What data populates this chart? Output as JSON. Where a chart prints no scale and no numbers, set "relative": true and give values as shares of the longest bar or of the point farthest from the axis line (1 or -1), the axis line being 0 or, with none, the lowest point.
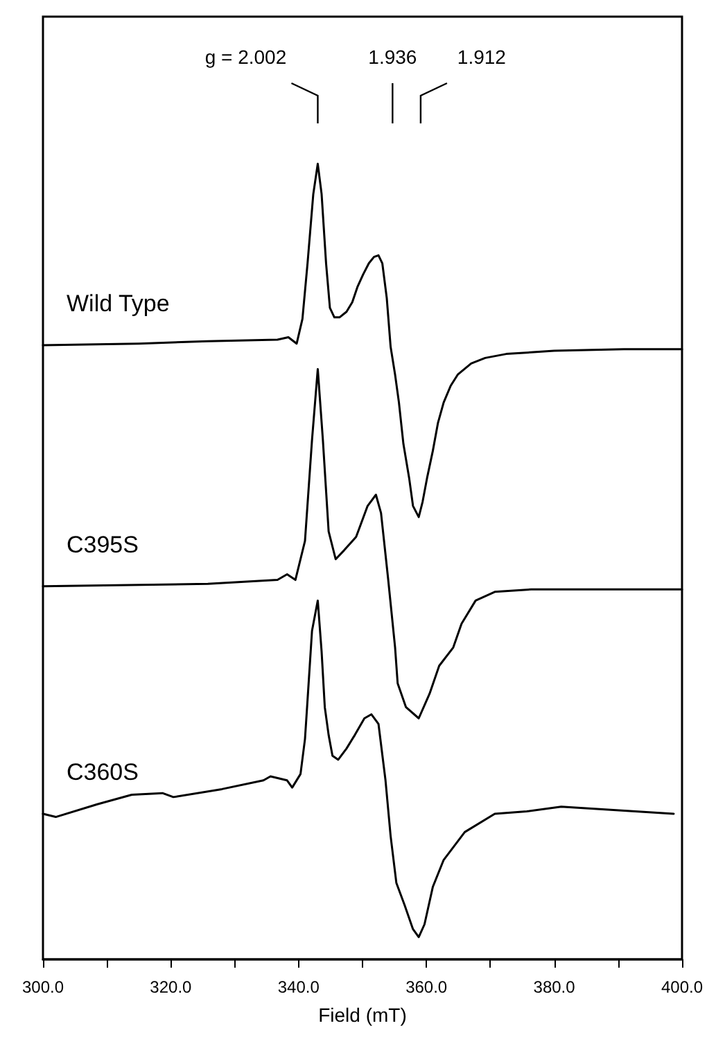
{
  "chart_data": {
    "type": "line",
    "relative": true,
    "xlabel": "Field (mT)",
    "xlim": [
      300,
      400
    ],
    "xticks": [
      {
        "value": 300,
        "label": "300.0"
      },
      {
        "value": 310,
        "label": null
      },
      {
        "value": 320,
        "label": "320.0"
      },
      {
        "value": 330,
        "label": null
      },
      {
        "value": 340,
        "label": "340.0"
      },
      {
        "value": 350,
        "label": null
      },
      {
        "value": 360,
        "label": "360.0"
      },
      {
        "value": 370,
        "label": null
      },
      {
        "value": 380,
        "label": "380.0"
      },
      {
        "value": 390,
        "label": null
      },
      {
        "value": 400,
        "label": "400.0"
      }
    ],
    "grid": false,
    "legend": false,
    "marker": "none",
    "line_style": "solid",
    "tick_labels": "x",
    "annotations": [
      "g = 2.002",
      "1.936",
      "1.912"
    ],
    "series": [
      {
        "name": "Wild Type",
        "color": "#000000",
        "x": [
          300.0,
          315.0,
          325.8,
          336.7,
          338.4,
          339.7,
          340.6,
          341.4,
          342.3,
          343.0,
          343.6,
          344.3,
          344.9,
          345.6,
          346.4,
          347.5,
          348.4,
          349.2,
          350.1,
          351.0,
          351.8,
          352.5,
          353.1,
          353.8,
          354.4,
          355.1,
          355.7,
          356.4,
          357.3,
          357.9,
          358.8,
          359.4,
          360.1,
          361.0,
          361.8,
          362.7,
          363.8,
          364.9,
          367.0,
          369.2,
          372.5,
          380.0,
          390.9,
          400.0
        ],
        "values": [
          0.772,
          0.774,
          0.777,
          0.779,
          0.782,
          0.774,
          0.805,
          0.875,
          0.962,
          1.0,
          0.962,
          0.875,
          0.819,
          0.807,
          0.807,
          0.814,
          0.826,
          0.845,
          0.861,
          0.875,
          0.883,
          0.885,
          0.875,
          0.831,
          0.77,
          0.735,
          0.7,
          0.648,
          0.605,
          0.57,
          0.556,
          0.575,
          0.605,
          0.639,
          0.674,
          0.7,
          0.721,
          0.735,
          0.749,
          0.756,
          0.761,
          0.765,
          0.767,
          0.767
        ]
      },
      {
        "name": "C395S",
        "color": "#000000",
        "x": [
          300.0,
          325.8,
          336.7,
          338.2,
          339.5,
          341.0,
          342.1,
          343.0,
          343.8,
          344.7,
          345.8,
          347.1,
          349.0,
          350.8,
          352.1,
          352.9,
          354.0,
          355.1,
          355.5,
          356.8,
          358.8,
          360.5,
          362.0,
          364.2,
          365.5,
          367.7,
          370.7,
          376.4,
          400.0
        ],
        "values": [
          0.469,
          0.472,
          0.477,
          0.484,
          0.477,
          0.526,
          0.653,
          0.742,
          0.653,
          0.538,
          0.503,
          0.514,
          0.531,
          0.57,
          0.584,
          0.561,
          0.479,
          0.392,
          0.347,
          0.317,
          0.303,
          0.334,
          0.369,
          0.392,
          0.422,
          0.451,
          0.462,
          0.465,
          0.465
        ]
      },
      {
        "name": "C360S",
        "color": "#000000",
        "x": [
          300.0,
          302.0,
          308.5,
          313.9,
          318.7,
          320.4,
          328.0,
          334.5,
          335.6,
          338.2,
          339.0,
          340.3,
          341.0,
          341.4,
          342.1,
          343.0,
          343.6,
          344.1,
          344.7,
          345.3,
          346.2,
          347.5,
          348.8,
          350.3,
          351.4,
          352.5,
          353.6,
          354.4,
          355.3,
          356.6,
          357.9,
          358.8,
          359.7,
          361.0,
          362.7,
          366.0,
          370.7,
          375.7,
          381.1,
          398.7
        ],
        "values": [
          0.183,
          0.179,
          0.195,
          0.207,
          0.209,
          0.204,
          0.214,
          0.225,
          0.23,
          0.225,
          0.216,
          0.233,
          0.277,
          0.326,
          0.413,
          0.451,
          0.387,
          0.317,
          0.282,
          0.256,
          0.251,
          0.265,
          0.282,
          0.303,
          0.308,
          0.296,
          0.225,
          0.155,
          0.096,
          0.068,
          0.038,
          0.028,
          0.044,
          0.091,
          0.125,
          0.16,
          0.183,
          0.186,
          0.192,
          0.183
        ]
      }
    ]
  }
}
